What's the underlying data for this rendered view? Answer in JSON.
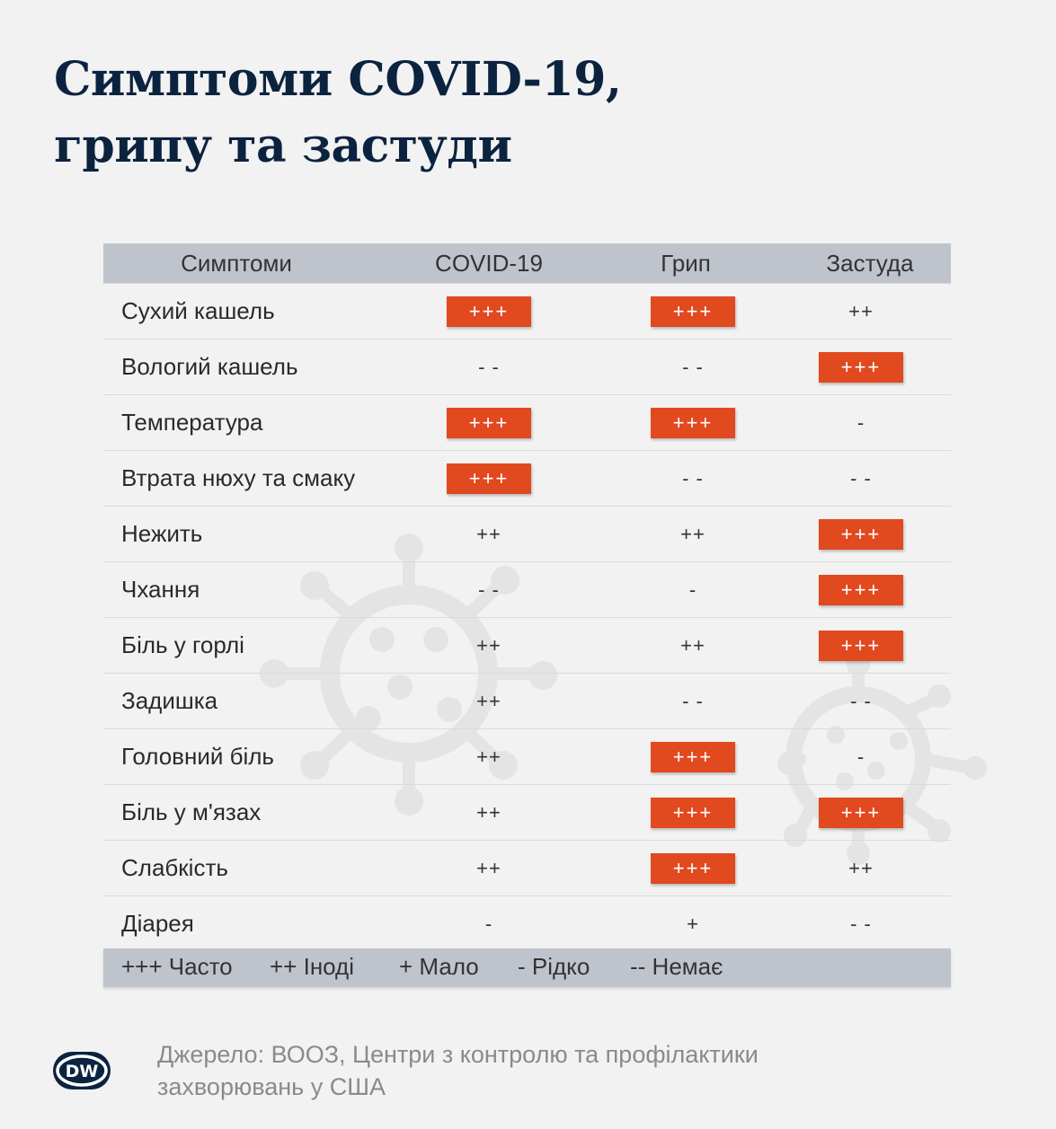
{
  "title": {
    "line1": "Симптоми COVID-19,",
    "line2": "грипу та застуди"
  },
  "table": {
    "headers": [
      "Симптоми",
      "COVID-19",
      "Грип",
      "Застуда"
    ],
    "rows": [
      {
        "symptom": "Сухий кашель",
        "covid": "+++",
        "flu": "+++",
        "cold": "++"
      },
      {
        "symptom": "Вологий кашель",
        "covid": "- -",
        "flu": "- -",
        "cold": "+++"
      },
      {
        "symptom": "Температура",
        "covid": "+++",
        "flu": "+++",
        "cold": "-"
      },
      {
        "symptom": "Втрата нюху та смаку",
        "covid": "+++",
        "flu": "- -",
        "cold": "- -"
      },
      {
        "symptom": "Нежить",
        "covid": "++",
        "flu": "++",
        "cold": "+++"
      },
      {
        "symptom": "Чхання",
        "covid": "- -",
        "flu": "-",
        "cold": "+++"
      },
      {
        "symptom": "Біль у горлі",
        "covid": "++",
        "flu": "++",
        "cold": "+++"
      },
      {
        "symptom": "Задишка",
        "covid": "++",
        "flu": "- -",
        "cold": "- -"
      },
      {
        "symptom": "Головний біль",
        "covid": "++",
        "flu": "+++",
        "cold": "-"
      },
      {
        "symptom": "Біль у м'язах",
        "covid": "++",
        "flu": "+++",
        "cold": "+++"
      },
      {
        "symptom": "Слабкість",
        "covid": "++",
        "flu": "+++",
        "cold": "++"
      },
      {
        "symptom": "Діарея",
        "covid": "-",
        "flu": "+",
        "cold": "- -"
      }
    ]
  },
  "legend": [
    "+++ Часто",
    "++ Іноді",
    "+ Мало",
    "- Рідко",
    "-- Немає"
  ],
  "logo_text": "DW",
  "source": "Джерело: ВООЗ, Центри з контролю та профілактики захворювань у США",
  "colors": {
    "title": "#0c2340",
    "highlight": "#e1491f",
    "header_bg": "#bfc4cc",
    "background": "#f2f2f2"
  }
}
